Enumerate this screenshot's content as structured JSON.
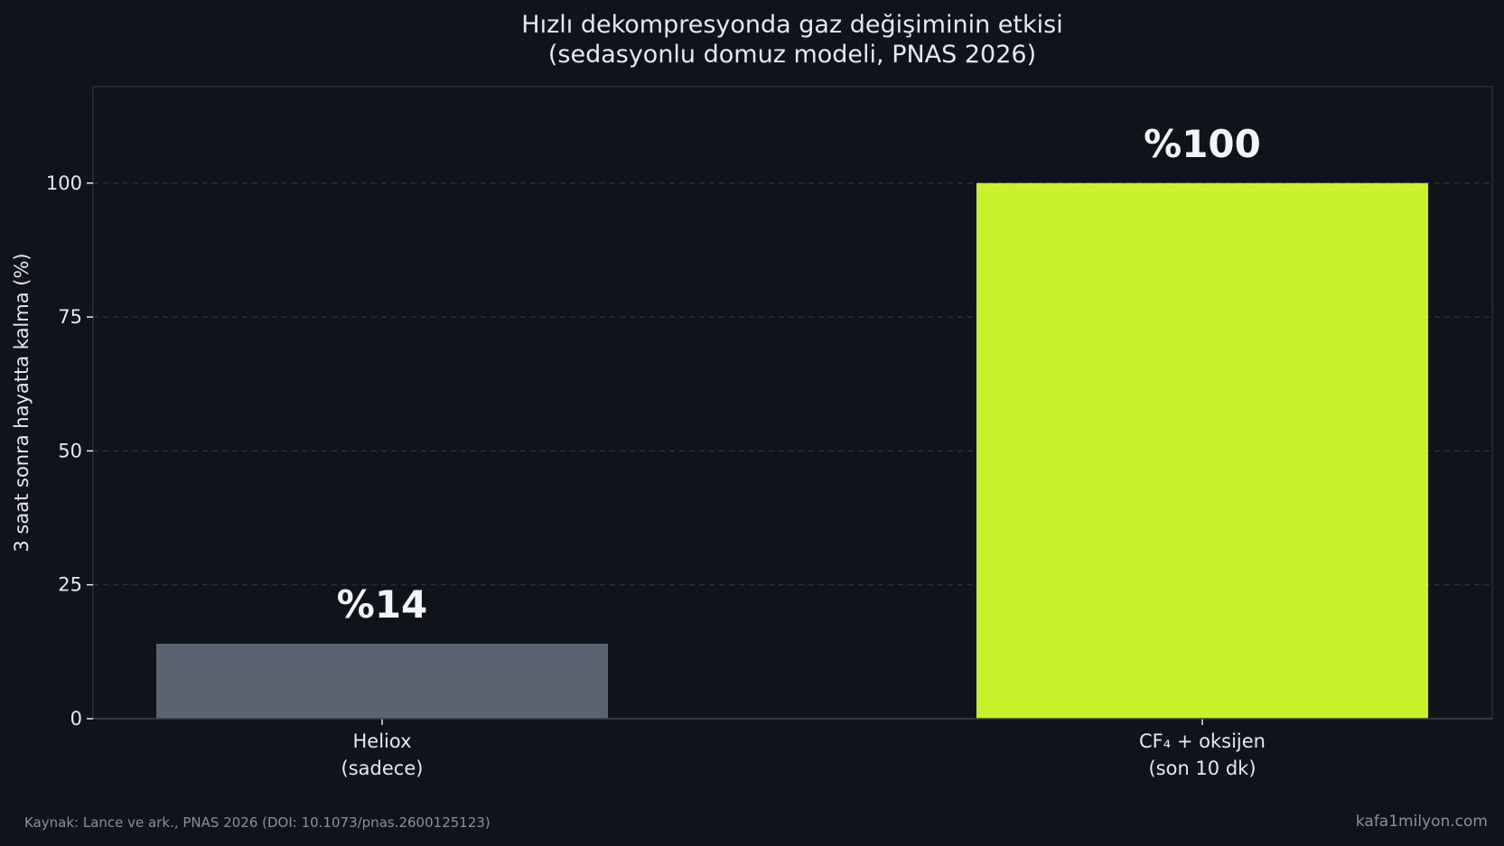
{
  "chart_data": {
    "type": "bar",
    "title_line1": "Hızlı dekompresyonda gaz değişiminin etkisi",
    "title_line2": "(sedasyonlu domuz modeli, PNAS 2026)",
    "ylabel": "3 saat sonra hayatta kalma (%)",
    "ylim": [
      0,
      118
    ],
    "yticks": [
      0,
      25,
      50,
      75,
      100
    ],
    "grid": true,
    "categories": [
      {
        "line1": "Heliox",
        "line2": "(sadece)"
      },
      {
        "line1": "CF₄ + oksijen",
        "line2": "(son 10 dk)"
      }
    ],
    "values": [
      14,
      100
    ],
    "data_labels": [
      "%14",
      "%100"
    ],
    "colors": [
      "#5b6270",
      "#c9f22b"
    ]
  },
  "colors": {
    "background": "#10131a",
    "text": "#e6e8ec",
    "grid": "#353a45",
    "axis": "#3a3f4a",
    "muted": "#8a8f98"
  },
  "footer": {
    "source": "Kaynak: Lance ve ark., PNAS 2026 (DOI: 10.1073/pnas.2600125123)",
    "brand": "kafa1milyon.com"
  }
}
